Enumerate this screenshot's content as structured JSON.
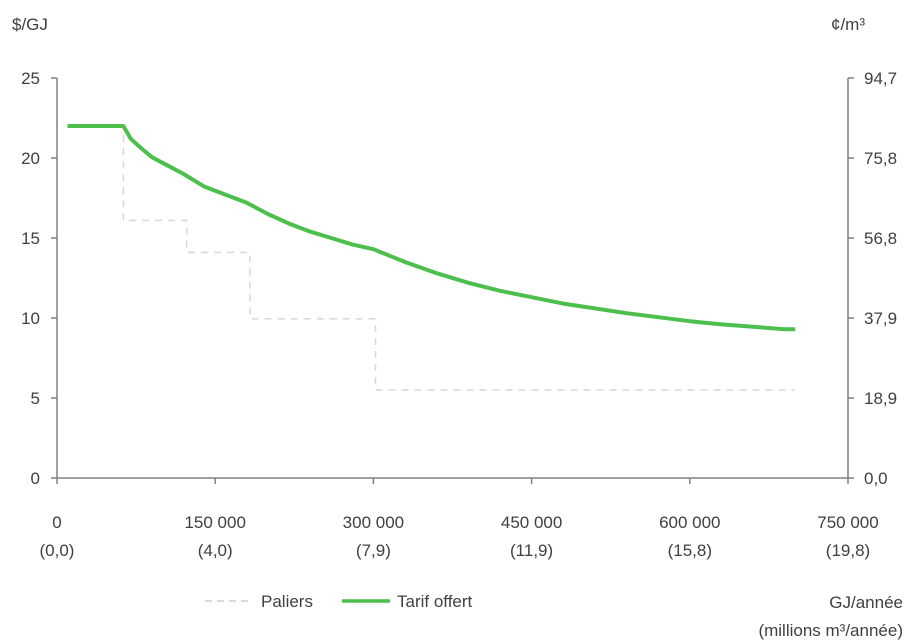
{
  "chart_data": {
    "type": "line",
    "left_unit_label": "$/GJ",
    "right_unit_label": "¢/m³",
    "x_unit_label": "GJ/année",
    "x_unit_sublabel": "(millions m³/année)",
    "xlim": [
      0,
      750000
    ],
    "ylim": [
      0,
      25
    ],
    "x_ticks": [
      {
        "value": 0,
        "label": "0",
        "sublabel": "(0,0)"
      },
      {
        "value": 150000,
        "label": "150 000",
        "sublabel": "(4,0)"
      },
      {
        "value": 300000,
        "label": "300 000",
        "sublabel": "(7,9)"
      },
      {
        "value": 450000,
        "label": "450 000",
        "sublabel": "(11,9)"
      },
      {
        "value": 600000,
        "label": "600 000",
        "sublabel": "(15,8)"
      },
      {
        "value": 750000,
        "label": "750 000",
        "sublabel": "(19,8)"
      }
    ],
    "y_left_ticks": [
      {
        "value": 0,
        "label": "0"
      },
      {
        "value": 5,
        "label": "5"
      },
      {
        "value": 10,
        "label": "10"
      },
      {
        "value": 15,
        "label": "15"
      },
      {
        "value": 20,
        "label": "20"
      },
      {
        "value": 25,
        "label": "25"
      }
    ],
    "y_right_ticks": [
      {
        "value": 0,
        "label": "0,0"
      },
      {
        "value": 5,
        "label": "18,9"
      },
      {
        "value": 10,
        "label": "37,9"
      },
      {
        "value": 15,
        "label": "56,8"
      },
      {
        "value": 20,
        "label": "75,8"
      },
      {
        "value": 25,
        "label": "94,7"
      }
    ],
    "series": [
      {
        "name": "Paliers",
        "color": "#d9d9d9",
        "style": "dashed",
        "x": [
          10000,
          63000,
          63000,
          123000,
          123000,
          183000,
          183000,
          302000,
          302000,
          700000
        ],
        "y": [
          22,
          22,
          16.1,
          16.1,
          14.1,
          14.1,
          9.95,
          9.95,
          5.5,
          5.5
        ]
      },
      {
        "name": "Tarif offert",
        "color": "#4dbf4d",
        "style": "solid",
        "x": [
          10000,
          63000,
          70000,
          80000,
          90000,
          100000,
          120000,
          140000,
          160000,
          180000,
          200000,
          220000,
          240000,
          260000,
          280000,
          300000,
          330000,
          360000,
          390000,
          420000,
          450000,
          480000,
          510000,
          540000,
          570000,
          600000,
          630000,
          660000,
          690000,
          700000
        ],
        "y": [
          22,
          22,
          21.2,
          20.6,
          20.05,
          19.7,
          19.0,
          18.2,
          17.7,
          17.2,
          16.5,
          15.9,
          15.4,
          15.0,
          14.6,
          14.3,
          13.5,
          12.8,
          12.2,
          11.7,
          11.3,
          10.9,
          10.6,
          10.3,
          10.05,
          9.8,
          9.6,
          9.45,
          9.3,
          9.3
        ]
      }
    ],
    "legend_position": "bottom-center",
    "grid": false
  }
}
